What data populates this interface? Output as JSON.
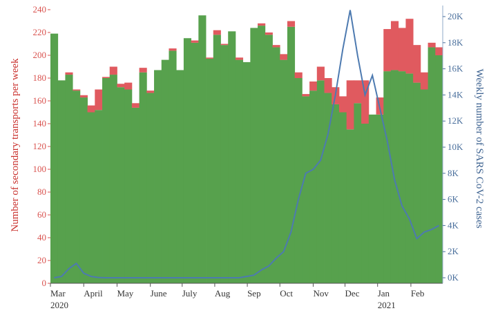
{
  "chart_data": {
    "type": "bar",
    "stacked": true,
    "title": "",
    "xlabel": "",
    "ylabel": "Number of secondary transports per week",
    "y2label": "Weekly number of SARS CoV-2 cases",
    "ylim": [
      0,
      240
    ],
    "y2lim": [
      0,
      20000
    ],
    "y_ticks": [
      "0",
      "20",
      "40",
      "60",
      "80",
      "100",
      "120",
      "140",
      "160",
      "180",
      "200",
      "220",
      "240"
    ],
    "y2_ticks": [
      "0K",
      "2K",
      "4K",
      "6K",
      "8K",
      "10K",
      "12K",
      "14K",
      "16K",
      "18K",
      "20K"
    ],
    "x_ticks": [
      {
        "label": "Mar",
        "sub": "2020",
        "week": 0
      },
      {
        "label": "April",
        "sub": "",
        "week": 4.5
      },
      {
        "label": "May",
        "sub": "",
        "week": 9
      },
      {
        "label": "June",
        "sub": "",
        "week": 13.5
      },
      {
        "label": "July",
        "sub": "",
        "week": 17.8
      },
      {
        "label": "Aug",
        "sub": "",
        "week": 22.2
      },
      {
        "label": "Sep",
        "sub": "",
        "week": 26.6
      },
      {
        "label": "Oct",
        "sub": "",
        "week": 31
      },
      {
        "label": "Nov",
        "sub": "",
        "week": 35.5
      },
      {
        "label": "Dec",
        "sub": "",
        "week": 39.8
      },
      {
        "label": "Jan",
        "sub": "2021",
        "week": 44.2
      },
      {
        "label": "Feb",
        "sub": "",
        "week": 48.7
      }
    ],
    "colors": {
      "green": "#57a14d",
      "red": "#e05a5f",
      "line": "#4d7ab0"
    },
    "series": [
      {
        "values": [
          219,
          178,
          183,
          169,
          163,
          150,
          152,
          180,
          183,
          172,
          170,
          154,
          185,
          167,
          187,
          196,
          204,
          187,
          215,
          211,
          235,
          197,
          218,
          209,
          221,
          196,
          194,
          224,
          226,
          218,
          207,
          196,
          225,
          180,
          164,
          169,
          178,
          167,
          157,
          150,
          135,
          158,
          140,
          148,
          148,
          186,
          187,
          186,
          184,
          176,
          170,
          207,
          200
        ]
      },
      {
        "values": [
          0,
          0,
          2,
          1,
          2,
          6,
          18,
          1,
          7,
          3,
          6,
          4,
          4,
          2,
          0,
          0,
          2,
          0,
          0,
          2,
          0,
          1,
          4,
          1,
          0,
          2,
          0,
          0,
          2,
          2,
          2,
          5,
          5,
          5,
          2,
          8,
          12,
          13,
          15,
          14,
          43,
          20,
          38,
          0,
          15,
          37,
          43,
          38,
          48,
          33,
          15,
          4,
          7
        ]
      },
      {
        "values": [
          0,
          100,
          700,
          1100,
          350,
          100,
          20,
          0,
          0,
          0,
          0,
          0,
          0,
          0,
          0,
          0,
          0,
          0,
          0,
          0,
          0,
          0,
          0,
          0,
          0,
          0,
          100,
          200,
          600,
          900,
          1500,
          2000,
          3500,
          6000,
          8000,
          8300,
          9000,
          11000,
          14000,
          17500,
          20500,
          17000,
          14000,
          15500,
          13000,
          10500,
          7500,
          5500,
          4500,
          3000,
          3500,
          3700,
          4000
        ]
      }
    ]
  }
}
